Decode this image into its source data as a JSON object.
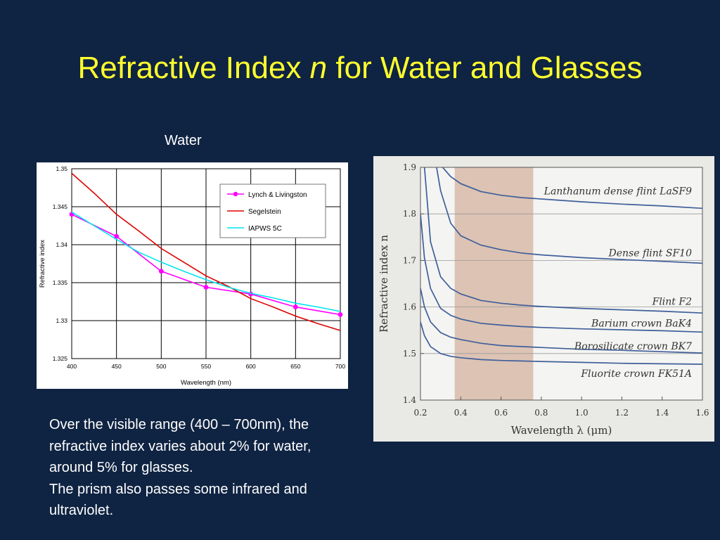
{
  "slide": {
    "title_main": "Refractive Index ",
    "title_var": "n",
    "title_rest": " for Water and Glasses",
    "water_label": "Water",
    "paragraphs": [
      "Over the visible range (400 – 700nm), the refractive index varies about 2% for water, around 5% for glasses.",
      "The prism also passes some infrared and ultraviolet."
    ]
  },
  "chart_data": [
    {
      "type": "line",
      "title": "",
      "xlabel": "Wavelength (nm)",
      "ylabel": "Refractive index",
      "xlim": [
        400,
        700
      ],
      "ylim": [
        1.325,
        1.35
      ],
      "x_ticks": [
        "400",
        "450",
        "500",
        "550",
        "600",
        "650",
        "700"
      ],
      "y_ticks": [
        "1.325",
        "1.33",
        "1.335",
        "1.34",
        "1.345",
        "1.35"
      ],
      "grid": true,
      "legend_position": "top-right",
      "series": [
        {
          "name": "Lynch & Livingston",
          "color": "#ff00ff",
          "markers": true,
          "x": [
            400,
            450,
            500,
            550,
            600,
            650,
            700
          ],
          "y": [
            1.344,
            1.3411,
            1.3365,
            1.3344,
            1.3335,
            1.3318,
            1.3308
          ]
        },
        {
          "name": "Segelstein",
          "color": "#dd0000",
          "markers": false,
          "x": [
            400,
            425,
            450,
            475,
            500,
            525,
            550,
            575,
            600,
            625,
            650,
            675,
            700
          ],
          "y": [
            1.3494,
            1.3468,
            1.344,
            1.3418,
            1.3395,
            1.3377,
            1.3359,
            1.3345,
            1.3329,
            1.3318,
            1.3306,
            1.3296,
            1.3287
          ]
        },
        {
          "name": "IAPWS 5C",
          "color": "#00e5ee",
          "markers": false,
          "x": [
            400,
            425,
            450,
            475,
            500,
            525,
            550,
            575,
            600,
            625,
            650,
            675,
            700
          ],
          "y": [
            1.3443,
            1.3425,
            1.3407,
            1.339,
            1.3377,
            1.3365,
            1.3354,
            1.3344,
            1.3336,
            1.333,
            1.3323,
            1.3318,
            1.3312
          ]
        }
      ]
    },
    {
      "type": "line",
      "title": "",
      "xlabel": "Wavelength λ (μm)",
      "ylabel": "Refractive index n",
      "xlim": [
        0.2,
        1.6
      ],
      "ylim": [
        1.4,
        1.9
      ],
      "x_ticks": [
        "0.2",
        "0.4",
        "0.6",
        "0.8",
        "1.0",
        "1.2",
        "1.4",
        "1.6"
      ],
      "y_ticks": [
        "1.4",
        "1.5",
        "1.6",
        "1.7",
        "1.8",
        "1.9"
      ],
      "grid": true,
      "visible_band": {
        "from": 0.37,
        "to": 0.76,
        "color": "#dcc3b4"
      },
      "series": [
        {
          "name": "Lanthanum dense flint LaSF9",
          "color": "#3f5f9a",
          "x": [
            0.31,
            0.35,
            0.4,
            0.5,
            0.6,
            0.7,
            0.8,
            1.0,
            1.2,
            1.4,
            1.6
          ],
          "y": [
            1.9,
            1.88,
            1.865,
            1.848,
            1.84,
            1.835,
            1.832,
            1.826,
            1.821,
            1.817,
            1.812
          ]
        },
        {
          "name": "Dense flint SF10",
          "color": "#3f5f9a",
          "x": [
            0.28,
            0.3,
            0.35,
            0.4,
            0.5,
            0.6,
            0.7,
            0.8,
            1.0,
            1.2,
            1.4,
            1.6
          ],
          "y": [
            1.9,
            1.85,
            1.78,
            1.753,
            1.733,
            1.723,
            1.716,
            1.712,
            1.706,
            1.702,
            1.698,
            1.694
          ]
        },
        {
          "name": "Flint F2",
          "color": "#3f5f9a",
          "x": [
            0.22,
            0.25,
            0.3,
            0.35,
            0.4,
            0.5,
            0.6,
            0.7,
            0.8,
            1.0,
            1.2,
            1.4,
            1.6
          ],
          "y": [
            1.9,
            1.74,
            1.665,
            1.64,
            1.628,
            1.614,
            1.608,
            1.604,
            1.601,
            1.597,
            1.594,
            1.591,
            1.587
          ]
        },
        {
          "name": "Barium crown BaK4",
          "color": "#3f5f9a",
          "x": [
            0.2,
            0.22,
            0.25,
            0.3,
            0.35,
            0.4,
            0.5,
            0.6,
            0.7,
            0.8,
            1.0,
            1.2,
            1.4,
            1.6
          ],
          "y": [
            1.8,
            1.705,
            1.64,
            1.597,
            1.582,
            1.574,
            1.565,
            1.561,
            1.558,
            1.556,
            1.553,
            1.551,
            1.549,
            1.546
          ]
        },
        {
          "name": "Borosilicate crown BK7",
          "color": "#3f5f9a",
          "x": [
            0.2,
            0.22,
            0.25,
            0.3,
            0.35,
            0.4,
            0.5,
            0.6,
            0.7,
            0.8,
            1.0,
            1.2,
            1.4,
            1.6
          ],
          "y": [
            1.64,
            1.6,
            1.568,
            1.545,
            1.535,
            1.53,
            1.522,
            1.517,
            1.515,
            1.513,
            1.509,
            1.507,
            1.504,
            1.501
          ]
        },
        {
          "name": "Fluorite crown FK51A",
          "color": "#3f5f9a",
          "x": [
            0.2,
            0.22,
            0.25,
            0.3,
            0.35,
            0.4,
            0.5,
            0.6,
            0.7,
            0.8,
            1.0,
            1.2,
            1.4,
            1.6
          ],
          "y": [
            1.568,
            1.538,
            1.515,
            1.5,
            1.494,
            1.491,
            1.487,
            1.485,
            1.484,
            1.483,
            1.481,
            1.479,
            1.478,
            1.477
          ]
        }
      ]
    }
  ]
}
